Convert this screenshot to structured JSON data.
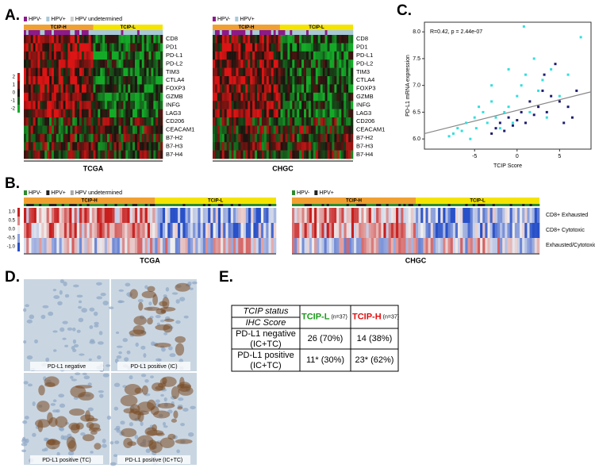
{
  "panel_a": {
    "label": "A.",
    "legend_left": [
      "HPV-",
      "HPV+",
      "HPV undetermined"
    ],
    "legend_right": [
      "HPV-",
      "HPV+"
    ],
    "groups": [
      "TCIP-H",
      "TCIP-L"
    ],
    "genes": [
      "CD8",
      "PD1",
      "PD-L1",
      "PD-L2",
      "TIM3",
      "CTLA4",
      "FOXP3",
      "GZMB",
      "INFG",
      "LAG3",
      "CD206",
      "CEACAM1",
      "B7-H2",
      "B7-H3",
      "B7-H4"
    ],
    "colorbar_ticks": [
      2,
      1,
      0,
      -1,
      -2
    ],
    "left_title": "TCGA",
    "right_title": "CHGC"
  },
  "panel_b": {
    "label": "B.",
    "legend_left": [
      "HPV-",
      "HPV+",
      "HPV undetermined"
    ],
    "legend_right": [
      "HPV-",
      "HPV+"
    ],
    "groups": [
      "TCIP-H",
      "TCIP-L"
    ],
    "rows": [
      "CD8+ Exhausted",
      "CD8+ Cytotoxic",
      "Exhausted/Cytotoxic"
    ],
    "colorbar_ticks": [
      "1.0",
      "0.5",
      "0.0",
      "-0.5",
      "-1.0"
    ],
    "left_title": "TCGA",
    "right_title": "CHGC"
  },
  "panel_c": {
    "label": "C.",
    "chart_data": {
      "type": "scatter",
      "annotation": "R=0.42, p = 2.44e-07",
      "x_label": "TCIP Score",
      "y_label": "PD-L1 mRNA expression",
      "xlim": [
        -10.9,
        8.7
      ],
      "ylim": [
        5.81,
        8.18
      ],
      "xticks": [
        -5,
        0,
        5
      ],
      "yticks": [
        {
          "value": 6,
          "label": "6.0"
        },
        {
          "value": 6.5,
          "label": "6.5"
        },
        {
          "value": 7,
          "label": "7.0"
        },
        {
          "value": 7.5,
          "label": "7.5"
        },
        {
          "value": 8,
          "label": "8.0"
        }
      ],
      "series": [
        {
          "color": "#33dede",
          "x": [
            -8,
            -7.5,
            -7,
            -6.5,
            -6,
            -5.5,
            -5,
            -4.8,
            -4.5,
            -4,
            -3.5,
            -3,
            -2.5,
            -2,
            -1.5,
            -1,
            -0.5,
            0,
            0.5,
            0.8,
            1,
            1.5,
            2,
            2.5,
            3,
            3.5,
            4,
            5,
            6,
            7.5,
            -3,
            -1
          ],
          "values": [
            6.05,
            6.1,
            6.2,
            6.15,
            6.3,
            6.0,
            6.4,
            6.2,
            6.6,
            6.5,
            6.3,
            6.7,
            6.4,
            6.2,
            6.5,
            6.6,
            6.3,
            6.8,
            7.0,
            8.1,
            7.2,
            6.5,
            7.5,
            6.9,
            7.1,
            6.4,
            7.3,
            6.8,
            7.2,
            7.9,
            7.0,
            7.3
          ]
        },
        {
          "color": "#1c1c6e",
          "x": [
            -3,
            -2.5,
            -2,
            -1.5,
            -1,
            -0.5,
            0,
            0.5,
            1,
            1.5,
            2,
            2.5,
            3,
            3.5,
            4,
            4.5,
            5,
            5.5,
            6,
            6.5,
            7,
            3.2
          ],
          "values": [
            6.1,
            6.2,
            6.3,
            6.15,
            6.4,
            6.25,
            6.35,
            6.5,
            6.3,
            6.7,
            6.45,
            6.6,
            6.9,
            6.5,
            6.8,
            7.4,
            6.7,
            6.3,
            6.6,
            6.4,
            6.9,
            7.2
          ]
        }
      ],
      "fit_line": {
        "x": [
          -10.9,
          8.7
        ],
        "values": [
          6.1,
          6.88
        ]
      }
    }
  },
  "panel_d": {
    "label": "D.",
    "captions": [
      "PD-L1 negative",
      "PD-L1 positive (IC)",
      "PD-L1 positive (TC)",
      "PD-L1 positive (IC+TC)"
    ]
  },
  "panel_e": {
    "label": "E.",
    "header": {
      "status": "TCIP status",
      "score": "IHC Score",
      "tcip_l": {
        "name": "TCIP-L",
        "n": "(n=37)"
      },
      "tcip_h": {
        "name": "TCIP-H",
        "n": "(n=37)"
      }
    },
    "rows": [
      {
        "label": [
          "PD-L1 negative",
          "(IC+TC)"
        ],
        "tcip_l": "26 (70%)",
        "tcip_h": "14 (38%)"
      },
      {
        "label": [
          "PD-L1 positive",
          "(IC+TC)"
        ],
        "tcip_l": "11* (30%)",
        "tcip_h": "23* (62%)"
      }
    ]
  }
}
